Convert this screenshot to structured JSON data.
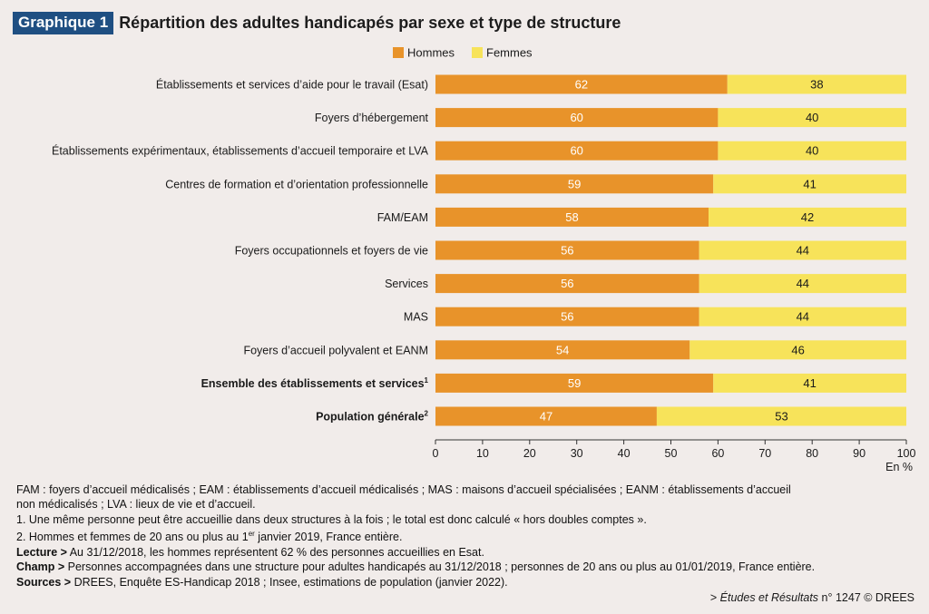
{
  "header": {
    "badge": "Graphique 1",
    "title": "Répartition des adultes handicapés par sexe et type de structure"
  },
  "colors": {
    "hommes": "#e8932a",
    "femmes": "#f7e35a",
    "badge": "#1f4f82",
    "background": "#f1ecea"
  },
  "chart_data": {
    "type": "bar",
    "orientation": "horizontal",
    "stacked": true,
    "categories": [
      "Établissements et services d’aide pour le travail (Esat)",
      "Foyers d’hébergement",
      "Établissements expérimentaux, établissements d’accueil temporaire et LVA",
      "Centres de formation et d’orientation professionnelle",
      "FAM/EAM",
      "Foyers occupationnels et foyers de vie",
      "Services",
      "MAS",
      "Foyers d’accueil polyvalent et EANM",
      "Ensemble des établissements et services",
      "Population générale"
    ],
    "category_superscripts": [
      "",
      "",
      "",
      "",
      "",
      "",
      "",
      "",
      "",
      "1",
      "2"
    ],
    "category_bold": [
      false,
      false,
      false,
      false,
      false,
      false,
      false,
      false,
      false,
      true,
      true
    ],
    "series": [
      {
        "name": "Hommes",
        "values": [
          62,
          60,
          60,
          59,
          58,
          56,
          56,
          56,
          54,
          59,
          47
        ]
      },
      {
        "name": "Femmes",
        "values": [
          38,
          40,
          40,
          41,
          42,
          44,
          44,
          44,
          46,
          41,
          53
        ]
      }
    ],
    "xlim": [
      0,
      100
    ],
    "xticks": [
      0,
      10,
      20,
      30,
      40,
      50,
      60,
      70,
      80,
      90,
      100
    ],
    "xlabel": "En %",
    "legend_position": "top"
  },
  "notes": {
    "abbreviations_line1": "FAM : foyers d’accueil médicalisés ; EAM : établissements d’accueil médicalisés ; MAS : maisons d’accueil spécialisées ; EANM : établissements d’accueil",
    "abbreviations_line2": "non médicalisés ; LVA : lieux de vie et d’accueil.",
    "note1": "1. Une même personne peut être accueillie dans deux structures à la fois ; le total est donc calculé « hors doubles comptes ».",
    "note2_pre": "2. Hommes et femmes de 20 ans ou plus au 1",
    "note2_sup": "er",
    "note2_post": " janvier 2019, France entière.",
    "lecture_label": "Lecture >",
    "lecture_text": " Au 31/12/2018, les hommes représentent 62 % des personnes accueillies en Esat.",
    "champ_label": "Champ >",
    "champ_text": " Personnes accompagnées dans une structure pour adultes handicapés au 31/12/2018 ; personnes de 20 ans ou plus au 01/01/2019, France entière.",
    "sources_label": "Sources >",
    "sources_text": " DREES, Enquête ES-Handicap 2018 ; Insee, estimations de population (janvier 2022)."
  },
  "credit": {
    "prefix": "> ",
    "publication": "Études et Résultats",
    "suffix": " n° 1247 © DREES"
  }
}
